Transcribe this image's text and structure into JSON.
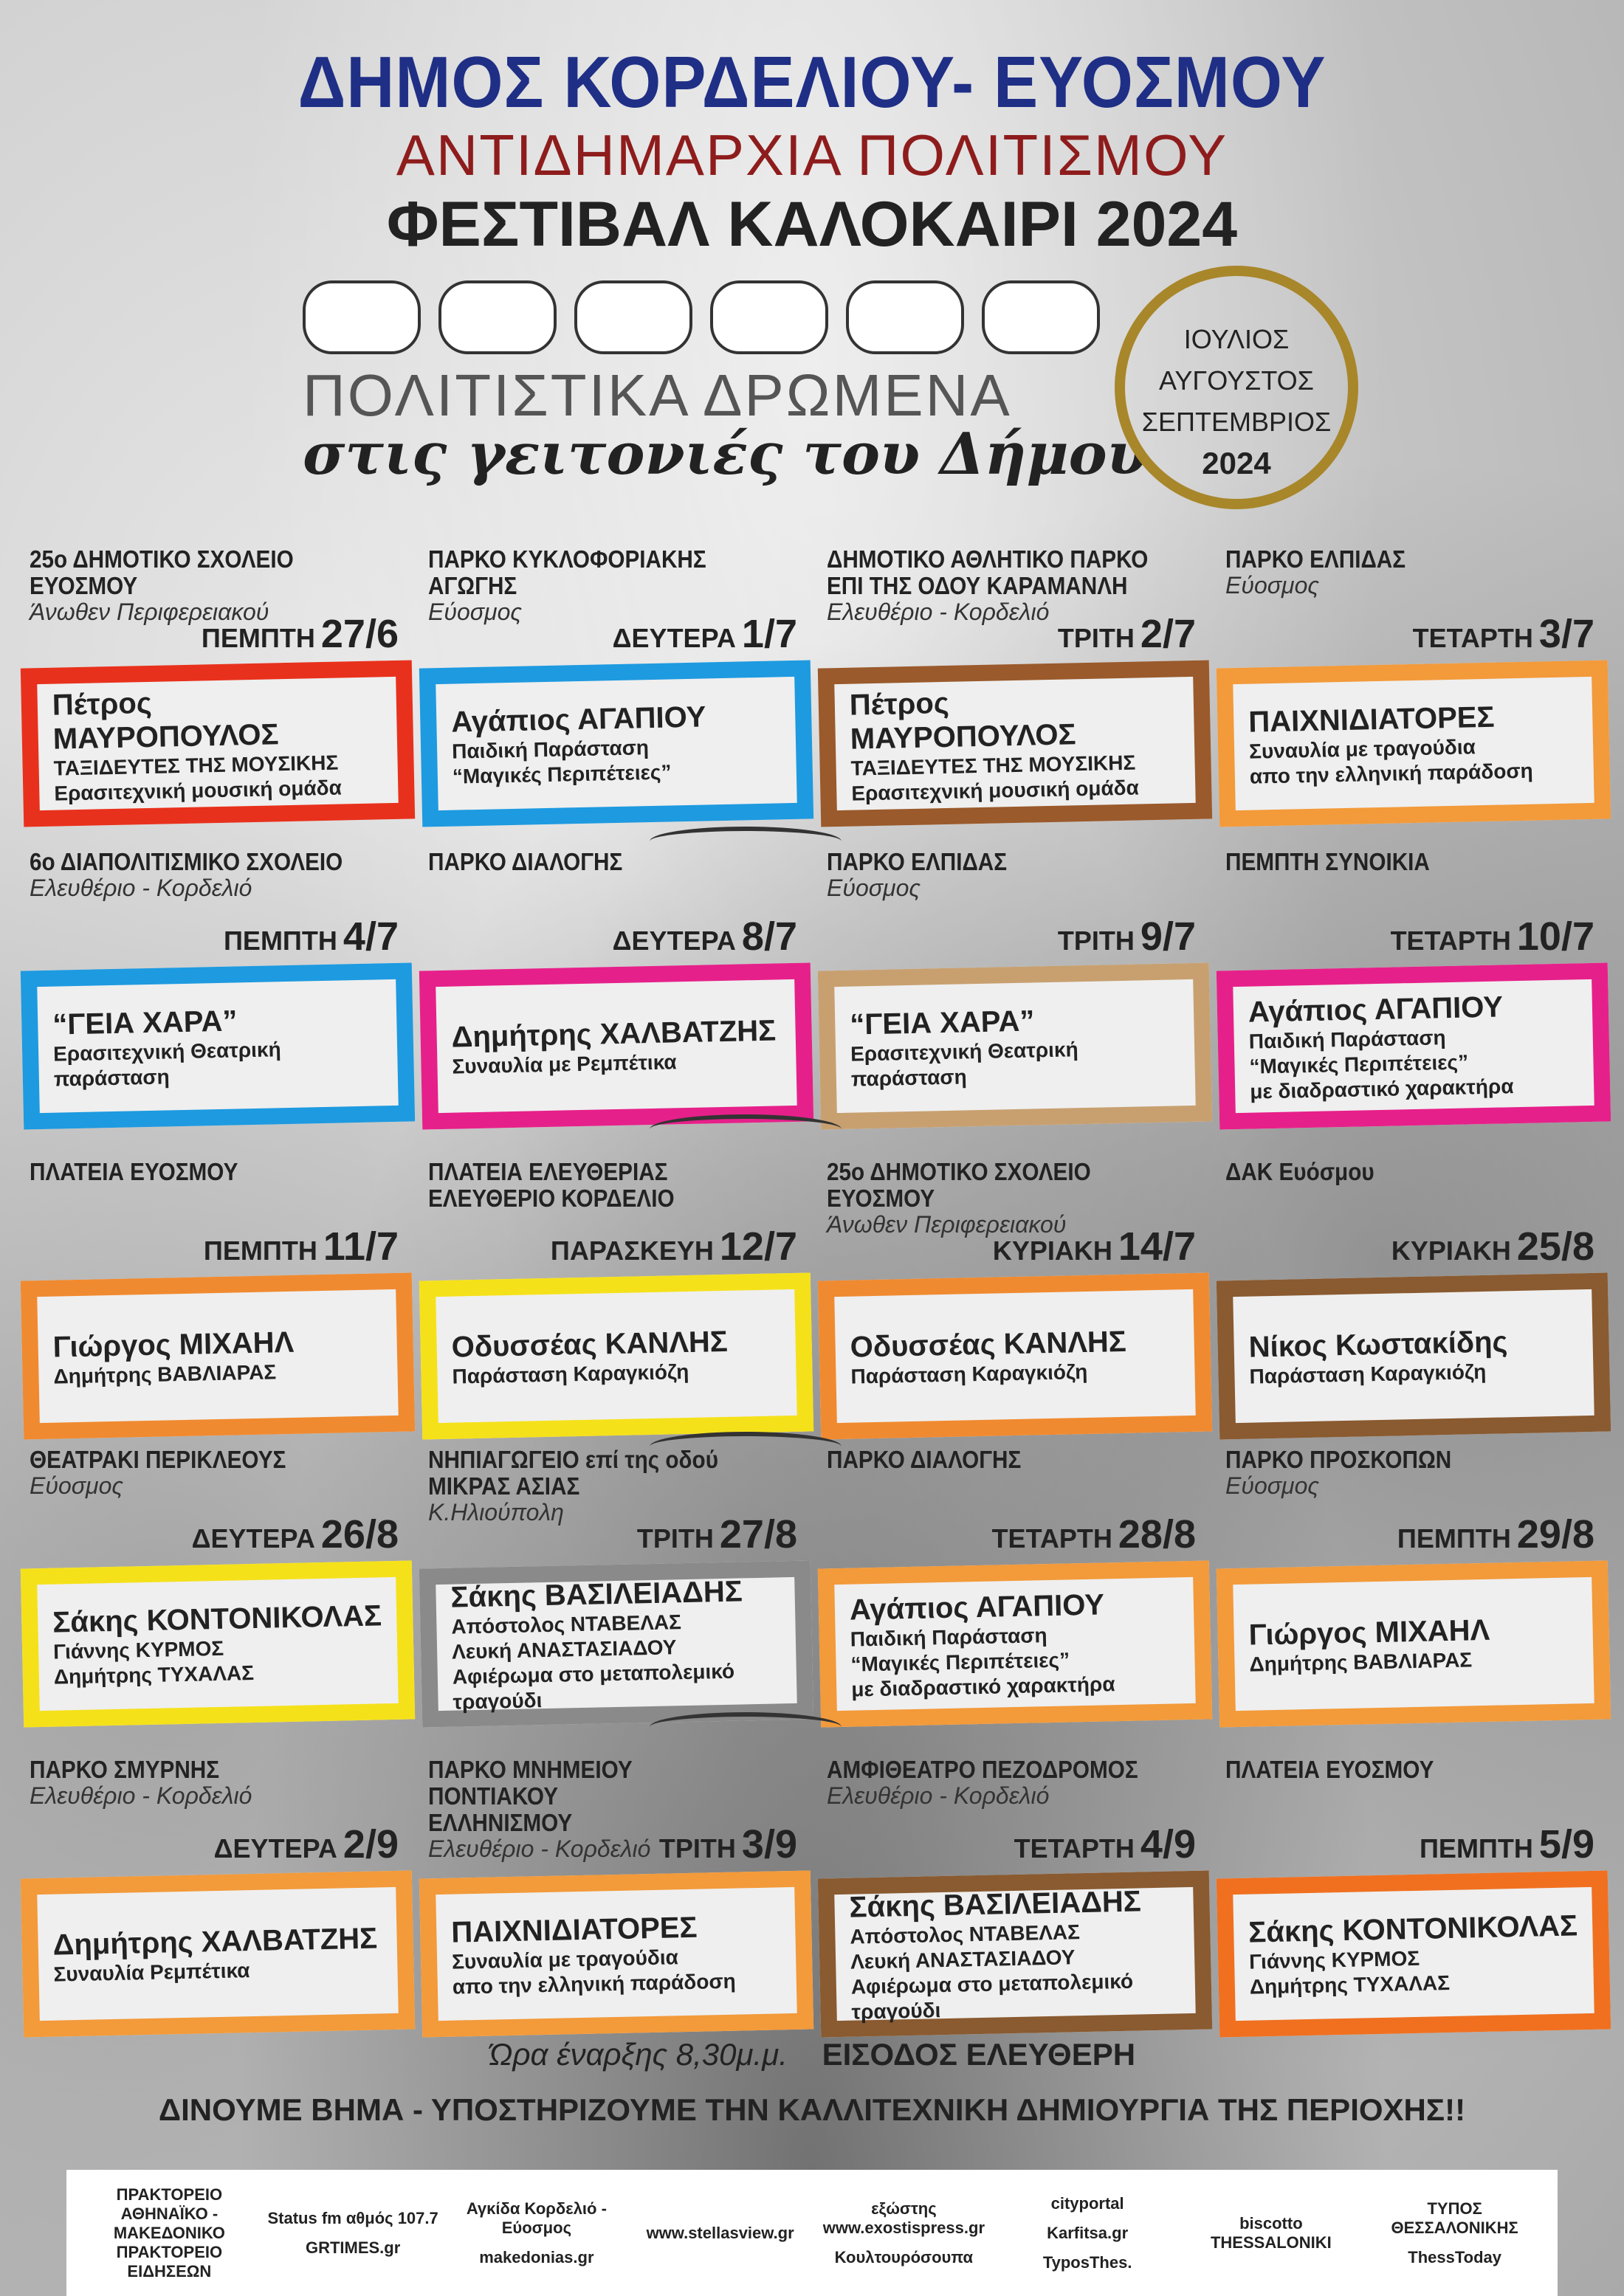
{
  "header": {
    "title": "ΔΗΜΟΣ ΚΟΡΔΕΛΙΟΥ- ΕΥΟΣΜΟΥ",
    "subtitle": "ΑΝΤΙΔΗΜΑΡΧΙΑ ΠΟΛΙΤΙΣΜΟΥ",
    "festival": "ΦΕΣΤΙΒΑΛ ΚΑΛΟΚΑΙΡΙ 2024",
    "tagline1": "ΠΟΛΙΤΙΣΤΙΚΑ ΔΡΩΜΕΝΑ",
    "tagline2": "στις γειτονιές του Δήμου",
    "months": [
      "ΙΟΥΛΙΟΣ",
      "ΑΥΓΟΥΣΤΟΣ",
      "ΣΕΠΤΕΜΒΡΙΟΣ"
    ],
    "year": "2024"
  },
  "colors": {
    "title": "#1f2f86",
    "subtitle": "#8e1c1c",
    "ring": "#a8862a"
  },
  "events": [
    {
      "venue": [
        "25ο ΔΗΜΟΤΙΚΟ ΣΧΟΛΕΙΟ ΕΥΟΣΜΟΥ"
      ],
      "area": "Άνωθεν Περιφερειακού",
      "day": "ΠΕΜΠΤΗ",
      "date": "27/6",
      "lines": [
        "Πέτρος ΜΑΥΡΟΠΟΥΛΟΣ",
        "ΤΑΞΙΔΕΥΤΕΣ ΤΗΣ ΜΟΥΣΙΚΗΣ",
        "Ερασιτεχνική μουσική ομάδα"
      ],
      "color": "#e8311c"
    },
    {
      "venue": [
        "ΠΑΡΚΟ ΚΥΚΛΟΦΟΡΙΑΚΗΣ",
        "ΑΓΩΓΗΣ"
      ],
      "area": "Εύοσμος",
      "day": "ΔΕΥΤΕΡΑ",
      "date": "1/7",
      "lines": [
        "Αγάπιος ΑΓΑΠΙΟΥ",
        "Παιδική Παράσταση",
        "“Μαγικές Περιπέτειες”"
      ],
      "color": "#1e9ae0"
    },
    {
      "venue": [
        "ΔΗΜΟΤΙΚΟ ΑΘΛΗΤΙΚΟ ΠΑΡΚΟ",
        "ΕΠΙ ΤΗΣ ΟΔΟΥ ΚΑΡΑΜΑΝΛΗ"
      ],
      "area": "Ελευθέριο - Κορδελιό",
      "day": "ΤΡΙΤΗ",
      "date": "2/7",
      "lines": [
        "Πέτρος ΜΑΥΡΟΠΟΥΛΟΣ",
        "ΤΑΞΙΔΕΥΤΕΣ ΤΗΣ ΜΟΥΣΙΚΗΣ",
        "Ερασιτεχνική μουσική ομάδα"
      ],
      "color": "#9a5a2c"
    },
    {
      "venue": [
        "ΠΑΡΚΟ ΕΛΠΙΔΑΣ"
      ],
      "area": "Εύοσμος",
      "day": "ΤΕΤΑΡΤΗ",
      "date": "3/7",
      "lines": [
        "ΠΑΙΧΝΙΔΙΑΤΟΡΕΣ",
        "Συναυλία με τραγούδια",
        "απο την ελληνική παράδοση"
      ],
      "color": "#f39a3a"
    },
    {
      "venue": [
        "6ο ΔΙΑΠΟΛΙΤΙΣΜΙΚΟ ΣΧΟΛΕΙΟ"
      ],
      "area": "Ελευθέριο - Κορδελιό",
      "day": "ΠΕΜΠΤΗ",
      "date": "4/7",
      "lines": [
        "“ΓΕΙΑ ΧΑΡΑ”",
        "Ερασιτεχνική Θεατρική",
        "παράσταση"
      ],
      "color": "#1e9ae0"
    },
    {
      "venue": [
        "ΠΑΡΚΟ ΔΙΑΛΟΓΗΣ"
      ],
      "area": "",
      "day": "ΔΕΥΤΕΡΑ",
      "date": "8/7",
      "lines": [
        "Δημήτρης ΧΑΛΒΑΤΖΗΣ",
        "Συναυλία με Ρεμπέτικα"
      ],
      "color": "#e6208a"
    },
    {
      "venue": [
        "ΠΑΡΚΟ ΕΛΠΙΔΑΣ"
      ],
      "area": "Εύοσμος",
      "day": "ΤΡΙΤΗ",
      "date": "9/7",
      "lines": [
        "“ΓΕΙΑ ΧΑΡΑ”",
        "Ερασιτεχνική Θεατρική",
        "παράσταση"
      ],
      "color": "#c8a070"
    },
    {
      "venue": [
        "ΠΕΜΠΤΗ ΣΥΝΟΙΚΙΑ"
      ],
      "area": "",
      "day": "ΤΕΤΑΡΤΗ",
      "date": "10/7",
      "lines": [
        "Αγάπιος ΑΓΑΠΙΟΥ",
        "Παιδική Παράσταση",
        "“Μαγικές Περιπέτειες”",
        "με διαδραστικό χαρακτήρα"
      ],
      "color": "#e6208a"
    },
    {
      "venue": [
        "ΠΛΑΤΕΙΑ ΕΥΟΣΜΟΥ"
      ],
      "area": "",
      "day": "ΠΕΜΠΤΗ",
      "date": "11/7",
      "lines": [
        "Γιώργος ΜΙΧΑΗΛ",
        "Δημήτρης ΒΑΒΛΙΑΡΑΣ"
      ],
      "color": "#f08a30"
    },
    {
      "venue": [
        "ΠΛΑΤΕΙΑ ΕΛΕΥΘΕΡΙΑΣ",
        "ΕΛΕΥΘΕΡΙΟ ΚΟΡΔΕΛΙΟ"
      ],
      "area": "",
      "day": "ΠΑΡΑΣΚΕΥΗ",
      "date": "12/7",
      "lines": [
        "Οδυσσέας ΚΑΝΛΗΣ",
        "Παράσταση Καραγκιόζη"
      ],
      "color": "#f5e11a"
    },
    {
      "venue": [
        "25ο ΔΗΜΟΤΙΚΟ ΣΧΟΛΕΙΟ ΕΥΟΣΜΟΥ"
      ],
      "area": "Άνωθεν Περιφερειακού",
      "day": "ΚΥΡΙΑΚΗ",
      "date": "14/7",
      "lines": [
        "Οδυσσέας ΚΑΝΛΗΣ",
        "Παράσταση Καραγκιόζη"
      ],
      "color": "#f08a30"
    },
    {
      "venue": [
        "ΔΑΚ Ευόσμου"
      ],
      "area": "",
      "day": "ΚΥΡΙΑΚΗ",
      "date": "25/8",
      "lines": [
        "Νίκος  Κωστακίδης",
        "Παράσταση Καραγκιόζη"
      ],
      "color": "#8a5a30"
    },
    {
      "venue": [
        "ΘΕΑΤΡΑΚΙ ΠΕΡΙΚΛΕΟΥΣ"
      ],
      "area": "Εύοσμος",
      "day": "ΔΕΥΤΕΡΑ",
      "date": "26/8",
      "lines": [
        "Σάκης ΚΟΝΤΟΝΙΚΟΛΑΣ",
        "Γιάννης ΚΥΡΜΟΣ",
        "Δημήτρης ΤΥΧΑΛΑΣ"
      ],
      "color": "#f5e11a"
    },
    {
      "venue": [
        "ΝΗΠΙΑΓΩΓΕΙΟ επί της οδού",
        "ΜΙΚΡΑΣ ΑΣΙΑΣ"
      ],
      "area": "Κ.Ηλιούπολη",
      "day": "ΤΡΙΤΗ",
      "date": "27/8",
      "lines": [
        "Σάκης ΒΑΣΙΛΕΙΑΔΗΣ",
        "Απόστολος ΝΤΑΒΕΛΑΣ",
        "Λευκή ΑΝΑΣΤΑΣΙΑΔΟΥ",
        "Αφιέρωμα στο μεταπολεμικό τραγούδι"
      ],
      "color": "#8a8a8a"
    },
    {
      "venue": [
        "ΠΑΡΚΟ ΔΙΑΛΟΓΗΣ"
      ],
      "area": "",
      "day": "ΤΕΤΑΡΤΗ",
      "date": "28/8",
      "lines": [
        "Αγάπιος ΑΓΑΠΙΟΥ",
        "Παιδική Παράσταση",
        "“Μαγικές Περιπέτειες”",
        "με διαδραστικό χαρακτήρα"
      ],
      "color": "#f39a3a"
    },
    {
      "venue": [
        "ΠΑΡΚΟ ΠΡΟΣΚΟΠΩΝ"
      ],
      "area": "Εύοσμος",
      "day": "ΠΕΜΠΤΗ",
      "date": "29/8",
      "lines": [
        "Γιώργος ΜΙΧΑΗΛ",
        "Δημήτρης ΒΑΒΛΙΑΡΑΣ"
      ],
      "color": "#f39a3a"
    },
    {
      "venue": [
        "ΠΑΡΚΟ ΣΜΥΡΝΗΣ"
      ],
      "area": "Ελευθέριο - Κορδελιό",
      "day": "ΔΕΥΤΕΡΑ",
      "date": "2/9",
      "lines": [
        "Δημήτρης ΧΑΛΒΑΤΖΗΣ",
        "Συναυλία Ρεμπέτικα"
      ],
      "color": "#f39a3a"
    },
    {
      "venue": [
        "ΠΑΡΚΟ ΜΝΗΜΕΙΟΥ ΠΟΝΤΙΑΚΟΥ",
        "ΕΛΛΗΝΙΣΜΟΥ"
      ],
      "area": "Ελευθέριο - Κορδελιό",
      "day": "ΤΡΙΤΗ",
      "date": "3/9",
      "lines": [
        "ΠΑΙΧΝΙΔΙΑΤΟΡΕΣ",
        "Συναυλία με τραγούδια",
        "απο την ελληνική παράδοση"
      ],
      "color": "#f39a3a"
    },
    {
      "venue": [
        "ΑΜΦΙΘΕΑΤΡΟ ΠΕΖΟΔΡΟΜΟΣ"
      ],
      "area": "Ελευθέριο - Κορδελιό",
      "day": "ΤΕΤΑΡΤΗ",
      "date": "4/9",
      "lines": [
        "Σάκης ΒΑΣΙΛΕΙΑΔΗΣ",
        "Απόστολος ΝΤΑΒΕΛΑΣ",
        "Λευκή ΑΝΑΣΤΑΣΙΑΔΟΥ",
        "Αφιέρωμα στο μεταπολεμικό τραγούδι"
      ],
      "color": "#8a5a30"
    },
    {
      "venue": [
        "ΠΛΑΤΕΙΑ ΕΥΟΣΜΟΥ"
      ],
      "area": "",
      "day": "ΠΕΜΠΤΗ",
      "date": "5/9",
      "lines": [
        "Σάκης ΚΟΝΤΟΝΙΚΟΛΑΣ",
        "Γιάννης ΚΥΡΜΟΣ",
        "Δημήτρης ΤΥΧΑΛΑΣ"
      ],
      "color": "#f07020"
    }
  ],
  "footer": {
    "start_label": "Ώρα έναρξης 8,30μ.μ.",
    "entry": "ΕΙΣΟΔΟΣ ΕΛΕΥΘΕΡΗ",
    "slogan": "ΔΙΝΟΥΜΕ ΒΗΜΑ - ΥΠΟΣΤΗΡΙΖΟΥΜΕ ΤΗΝ ΚΑΛΛΙΤΕΧΝΙΚΗ ΔΗΜΙΟΥΡΓΙΑ ΤΗΣ ΠΕΡΙΟΧΗΣ!!"
  },
  "sponsors": [
    [
      "ΠΡΑΚΤΟΡΕΙΟ ΑΘΗΝΑΪΚΟ - ΜΑΚΕΔΟΝΙΚΟ ΠΡΑΚΤΟΡΕΙΟ ΕΙΔΗΣΕΩΝ"
    ],
    [
      "Status fm αθμός 107.7",
      "GRTIMES.gr"
    ],
    [
      "Αγκίδα Κορδελιό - Εύοσμος",
      "makedonias.gr"
    ],
    [
      "www.stellasview.gr"
    ],
    [
      "εξώστης www.exostispress.gr",
      "Κουλτουρόσουπα"
    ],
    [
      "cityportal",
      "Karfitsa.gr",
      "TyposThes."
    ],
    [
      "biscotto THESSALONIKI"
    ],
    [
      "ΤΥΠΟΣ ΘΕΣΣΑΛΟΝΙΚΗΣ",
      "ThessToday"
    ]
  ]
}
